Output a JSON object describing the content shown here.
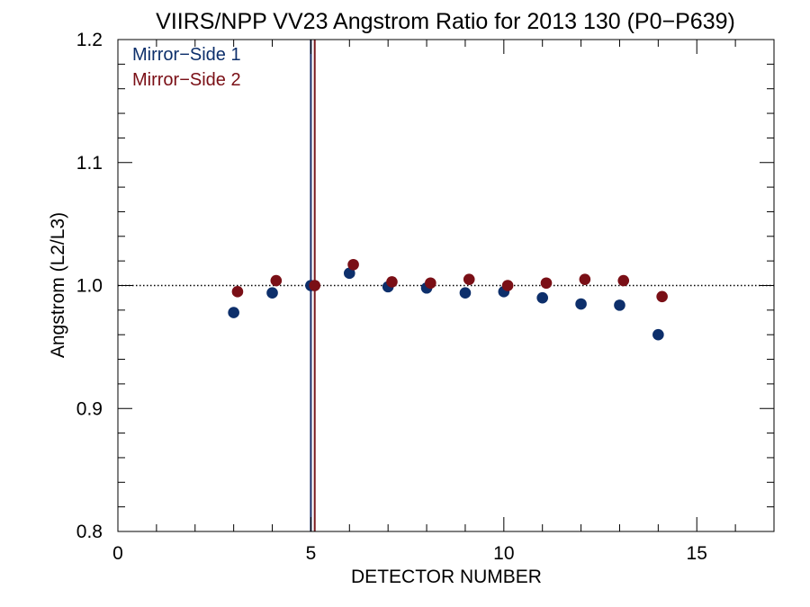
{
  "chart_data": {
    "type": "scatter",
    "title": "VIIRS/NPP VV23 Angstrom Ratio for 2013 130 (P0−P639)",
    "xlabel": "DETECTOR NUMBER",
    "ylabel": "Angstrom (L2/L3)",
    "xlim": [
      0,
      17
    ],
    "ylim": [
      0.8,
      1.2
    ],
    "x_ticks": [
      0,
      5,
      10,
      15
    ],
    "x_tick_labels": [
      "0",
      "5",
      "10",
      "15"
    ],
    "y_ticks": [
      0.8,
      0.9,
      1.0,
      1.1,
      1.2
    ],
    "y_tick_labels": [
      "0.8",
      "0.9",
      "1.0",
      "1.1",
      "1.2"
    ],
    "reference_line": {
      "y": 1.0,
      "style": "dotted"
    },
    "vertical_lines": [
      {
        "x": 5.0,
        "color": "#1a2f6b"
      },
      {
        "x": 5.1,
        "color": "#7a1a1f"
      }
    ],
    "legend_position": "top-left",
    "series": [
      {
        "name": "Mirror−Side 1",
        "color": "#0d2f6b",
        "points": [
          [
            3,
            0.978
          ],
          [
            4,
            0.994
          ],
          [
            5,
            1.0
          ],
          [
            6,
            1.01
          ],
          [
            7,
            0.999
          ],
          [
            8,
            0.998
          ],
          [
            9,
            0.994
          ],
          [
            10,
            0.995
          ],
          [
            11,
            0.99
          ],
          [
            12,
            0.985
          ],
          [
            13,
            0.984
          ],
          [
            14,
            0.96
          ]
        ]
      },
      {
        "name": "Mirror−Side 2",
        "color": "#7a0f16",
        "points": [
          [
            3.1,
            0.995
          ],
          [
            4.1,
            1.004
          ],
          [
            5.1,
            1.0
          ],
          [
            6.1,
            1.017
          ],
          [
            7.1,
            1.003
          ],
          [
            8.1,
            1.002
          ],
          [
            9.1,
            1.005
          ],
          [
            10.1,
            1.0
          ],
          [
            11.1,
            1.002
          ],
          [
            12.1,
            1.005
          ],
          [
            13.1,
            1.004
          ],
          [
            14.1,
            0.991
          ]
        ]
      }
    ]
  }
}
